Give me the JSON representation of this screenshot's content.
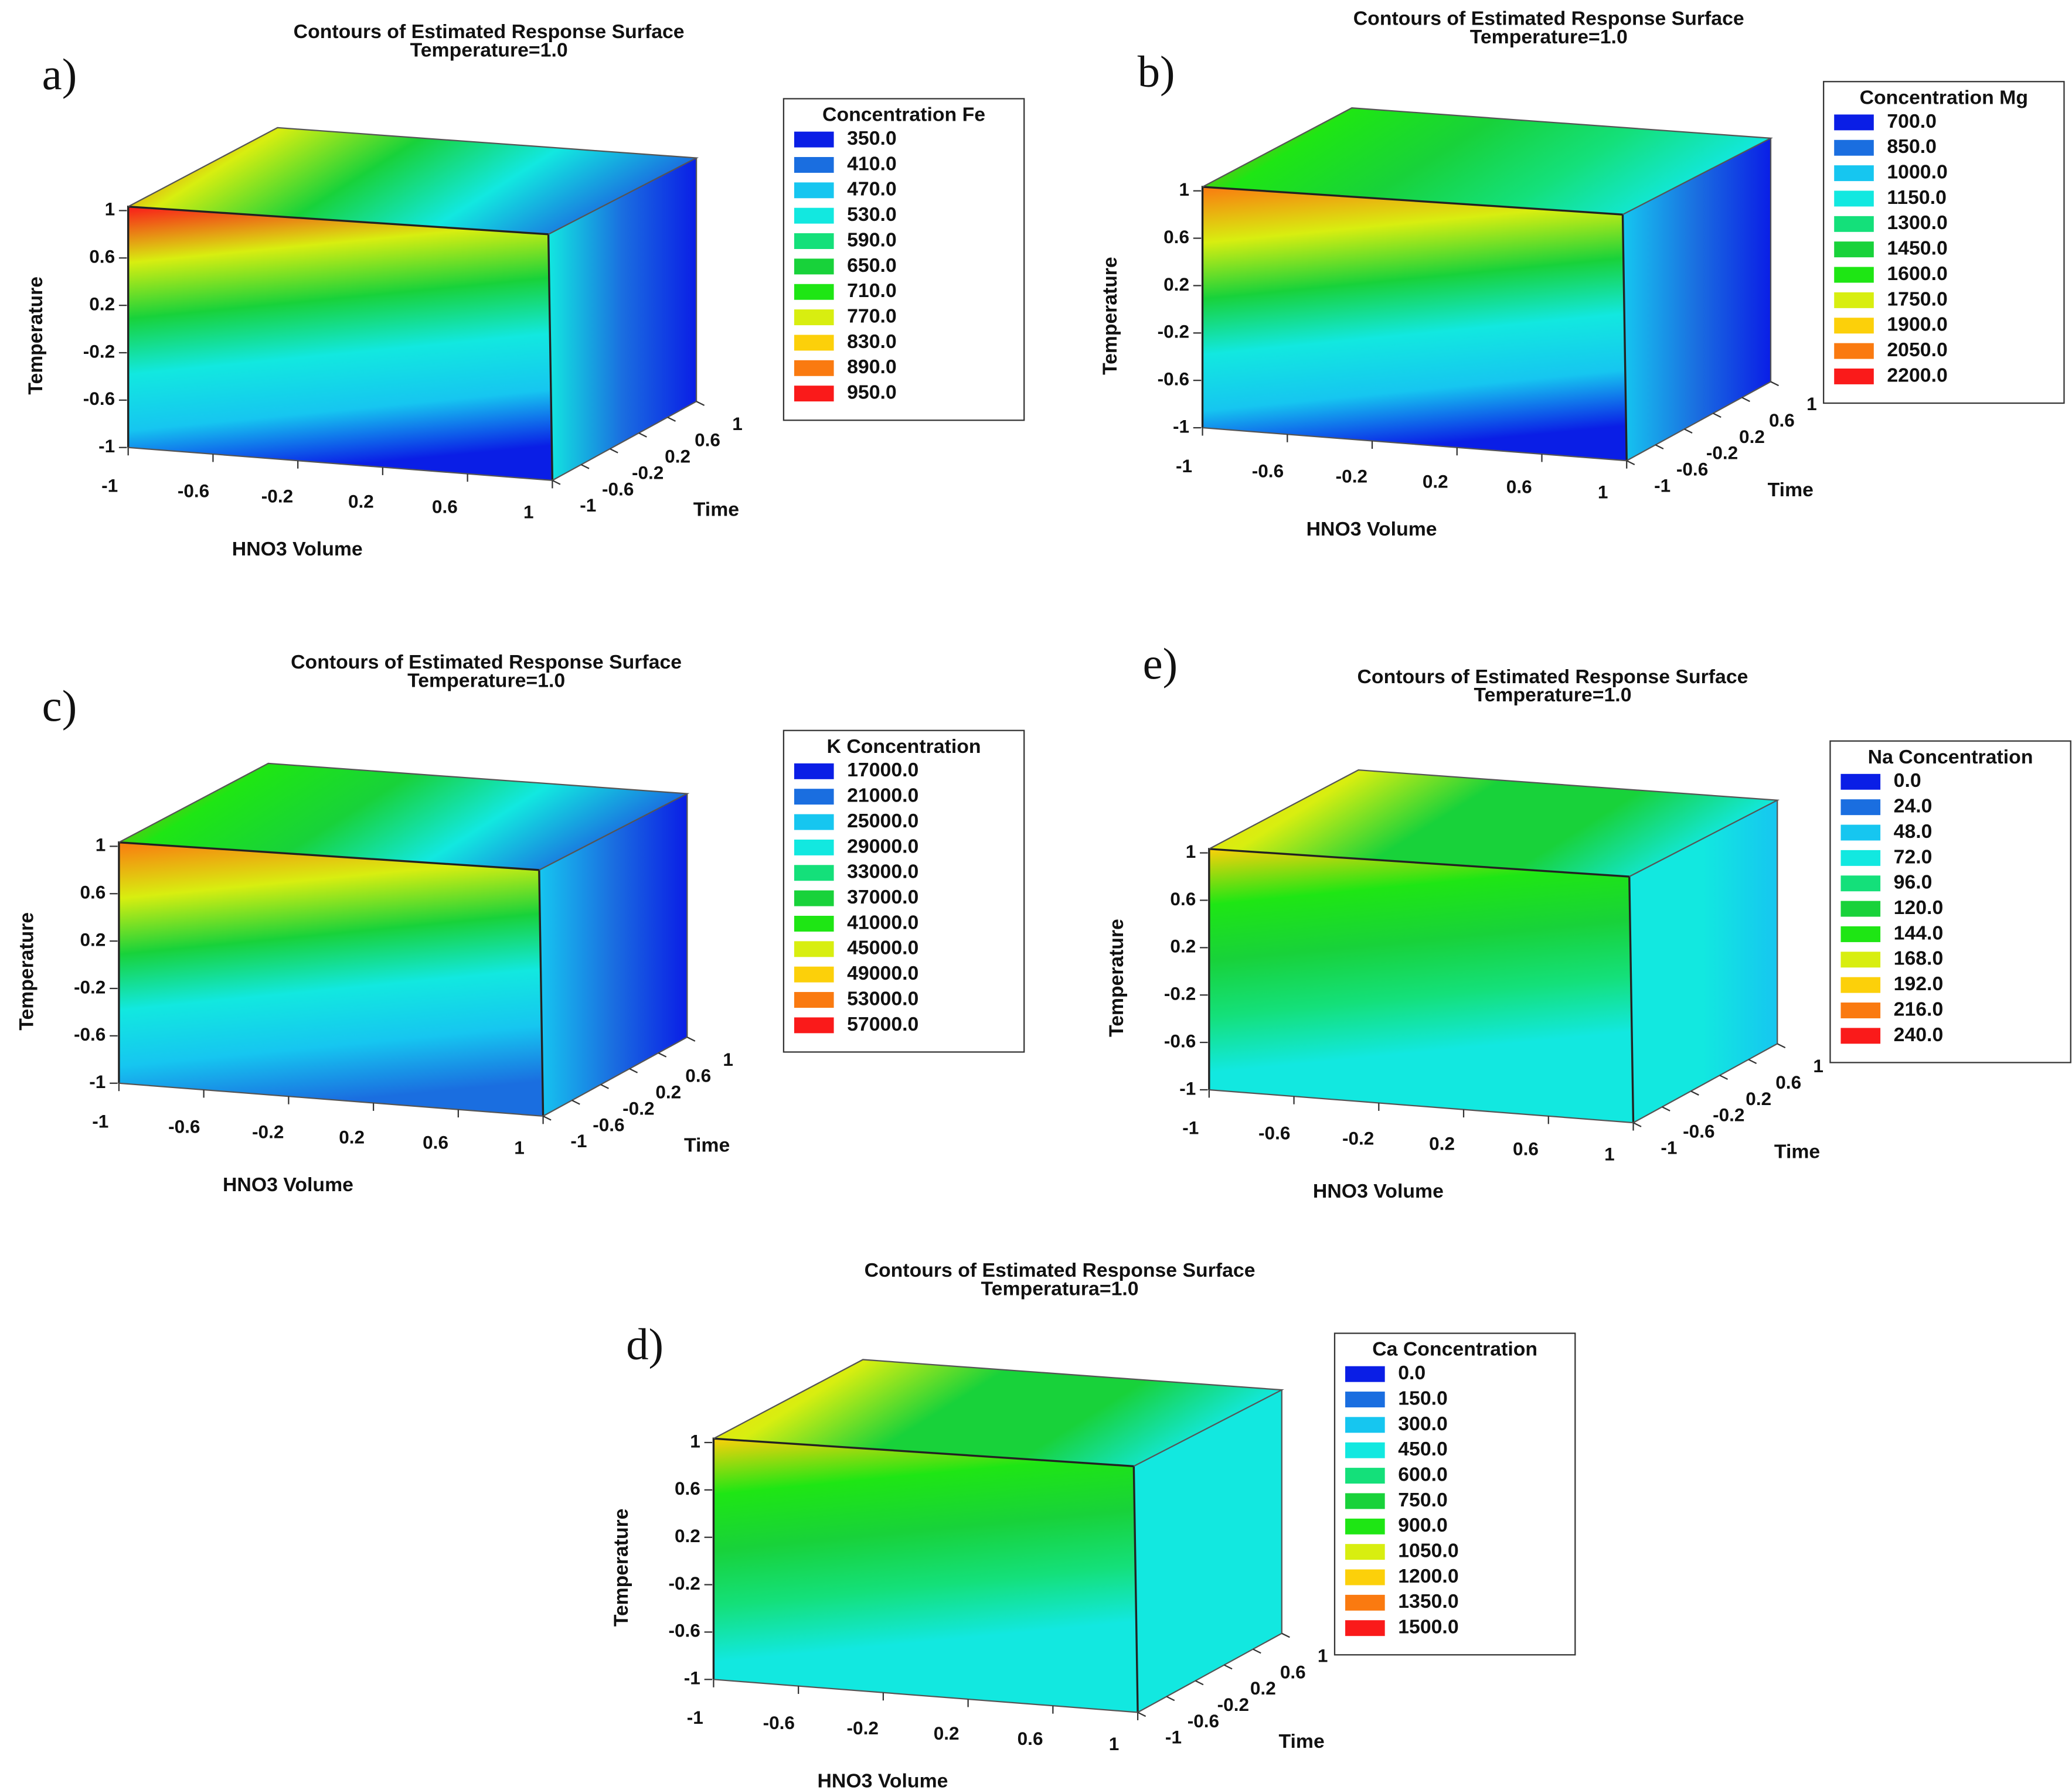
{
  "chart_data": [
    {
      "type": "contour",
      "panel": "a)",
      "title": "Contours of Estimated Response Surface",
      "subtitle": "Temperature=1.0",
      "xlabel": "HNO3 Volume",
      "ylabel": "Temperature",
      "zlabel": "Time",
      "xlim": [
        -1,
        1
      ],
      "xticks": [
        -1,
        -0.6,
        -0.2,
        0.2,
        0.6,
        1
      ],
      "ylim": [
        -1,
        1
      ],
      "yticks": [
        -1,
        -0.6,
        -0.2,
        0.2,
        0.6,
        1
      ],
      "zlim": [
        -1,
        1
      ],
      "zticks": [
        -1,
        -0.6,
        -0.2,
        0.2,
        0.6,
        1
      ],
      "legend_title": "Concentration Fe",
      "levels": [
        {
          "value": 350,
          "label": "350.0"
        },
        {
          "value": 410,
          "label": "410.0"
        },
        {
          "value": 470,
          "label": "470.0"
        },
        {
          "value": 530,
          "label": "530.0"
        },
        {
          "value": 590,
          "label": "590.0"
        },
        {
          "value": 650,
          "label": "650.0"
        },
        {
          "value": 710,
          "label": "710.0"
        },
        {
          "value": 770,
          "label": "770.0"
        },
        {
          "value": 830,
          "label": "830.0"
        },
        {
          "value": 890,
          "label": "890.0"
        },
        {
          "value": 950,
          "label": "950.0"
        }
      ],
      "colors": [
        "#0a1ee6",
        "#1a6ee0",
        "#16c6f0",
        "#12e8e0",
        "#14e07a",
        "#18d23a",
        "#1ee614",
        "#d8ee10",
        "#fcd00a",
        "#fa7a10",
        "#fa1a1a"
      ]
    },
    {
      "type": "contour",
      "panel": "b)",
      "title": "Contours of Estimated Response Surface",
      "subtitle": "Temperature=1.0",
      "xlabel": "HNO3 Volume",
      "ylabel": "Temperature",
      "zlabel": "Time",
      "xlim": [
        -1,
        1
      ],
      "xticks": [
        -1,
        -0.6,
        -0.2,
        0.2,
        0.6,
        1
      ],
      "ylim": [
        -1,
        1
      ],
      "yticks": [
        -1,
        -0.6,
        -0.2,
        0.2,
        0.6,
        1
      ],
      "zlim": [
        -1,
        1
      ],
      "zticks": [
        -1,
        -0.6,
        -0.2,
        0.2,
        0.6,
        1
      ],
      "legend_title": "Concentration Mg",
      "levels": [
        {
          "value": 700,
          "label": "700.0"
        },
        {
          "value": 850,
          "label": "850.0"
        },
        {
          "value": 1000,
          "label": "1000.0"
        },
        {
          "value": 1150,
          "label": "1150.0"
        },
        {
          "value": 1300,
          "label": "1300.0"
        },
        {
          "value": 1450,
          "label": "1450.0"
        },
        {
          "value": 1600,
          "label": "1600.0"
        },
        {
          "value": 1750,
          "label": "1750.0"
        },
        {
          "value": 1900,
          "label": "1900.0"
        },
        {
          "value": 2050,
          "label": "2050.0"
        },
        {
          "value": 2200,
          "label": "2200.0"
        }
      ],
      "colors": [
        "#0a1ee6",
        "#1a6ee0",
        "#16c6f0",
        "#12e8e0",
        "#14e07a",
        "#18d23a",
        "#1ee614",
        "#d8ee10",
        "#fcd00a",
        "#fa7a10",
        "#fa1a1a"
      ]
    },
    {
      "type": "contour",
      "panel": "c)",
      "title": "Contours of Estimated Response Surface",
      "subtitle": "Temperature=1.0",
      "xlabel": "HNO3 Volume",
      "ylabel": "Temperature",
      "zlabel": "Time",
      "xlim": [
        -1,
        1
      ],
      "xticks": [
        -1,
        -0.6,
        -0.2,
        0.2,
        0.6,
        1
      ],
      "ylim": [
        -1,
        1
      ],
      "yticks": [
        -1,
        -0.6,
        -0.2,
        0.2,
        0.6,
        1
      ],
      "zlim": [
        -1,
        1
      ],
      "zticks": [
        -1,
        -0.6,
        -0.2,
        0.2,
        0.6,
        1
      ],
      "legend_title": "K Concentration",
      "levels": [
        {
          "value": 17000,
          "label": "17000.0"
        },
        {
          "value": 21000,
          "label": "21000.0"
        },
        {
          "value": 25000,
          "label": "25000.0"
        },
        {
          "value": 29000,
          "label": "29000.0"
        },
        {
          "value": 33000,
          "label": "33000.0"
        },
        {
          "value": 37000,
          "label": "37000.0"
        },
        {
          "value": 41000,
          "label": "41000.0"
        },
        {
          "value": 45000,
          "label": "45000.0"
        },
        {
          "value": 49000,
          "label": "49000.0"
        },
        {
          "value": 53000,
          "label": "53000.0"
        },
        {
          "value": 57000,
          "label": "57000.0"
        }
      ],
      "colors": [
        "#0a1ee6",
        "#1a6ee0",
        "#16c6f0",
        "#12e8e0",
        "#14e07a",
        "#18d23a",
        "#1ee614",
        "#d8ee10",
        "#fcd00a",
        "#fa7a10",
        "#fa1a1a"
      ]
    },
    {
      "type": "contour",
      "panel": "e)",
      "title": "Contours of Estimated Response Surface",
      "subtitle": "Temperature=1.0",
      "xlabel": "HNO3 Volume",
      "ylabel": "Temperature",
      "zlabel": "Time",
      "xlim": [
        -1,
        1
      ],
      "xticks": [
        -1,
        -0.6,
        -0.2,
        0.2,
        0.6,
        1
      ],
      "ylim": [
        -1,
        1
      ],
      "yticks": [
        -1,
        -0.6,
        -0.2,
        0.2,
        0.6,
        1
      ],
      "zlim": [
        -1,
        1
      ],
      "zticks": [
        -1,
        -0.6,
        -0.2,
        0.2,
        0.6,
        1
      ],
      "legend_title": "Na Concentration",
      "levels": [
        {
          "value": 0,
          "label": "0.0"
        },
        {
          "value": 24,
          "label": "24.0"
        },
        {
          "value": 48,
          "label": "48.0"
        },
        {
          "value": 72,
          "label": "72.0"
        },
        {
          "value": 96,
          "label": "96.0"
        },
        {
          "value": 120,
          "label": "120.0"
        },
        {
          "value": 144,
          "label": "144.0"
        },
        {
          "value": 168,
          "label": "168.0"
        },
        {
          "value": 192,
          "label": "192.0"
        },
        {
          "value": 216,
          "label": "216.0"
        },
        {
          "value": 240,
          "label": "240.0"
        }
      ],
      "colors": [
        "#0a1ee6",
        "#1a6ee0",
        "#16c6f0",
        "#12e8e0",
        "#14e07a",
        "#18d23a",
        "#1ee614",
        "#d8ee10",
        "#fcd00a",
        "#fa7a10",
        "#fa1a1a"
      ]
    },
    {
      "type": "contour",
      "panel": "d)",
      "title": "Contours of Estimated Response Surface",
      "subtitle": "Temperatura=1.0",
      "xlabel": "HNO3 Volume",
      "ylabel": "Temperature",
      "zlabel": "Time",
      "xlim": [
        -1,
        1
      ],
      "xticks": [
        -1,
        -0.6,
        -0.2,
        0.2,
        0.6,
        1
      ],
      "ylim": [
        -1,
        1
      ],
      "yticks": [
        -1,
        -0.6,
        -0.2,
        0.2,
        0.6,
        1
      ],
      "zlim": [
        -1,
        1
      ],
      "zticks": [
        -1,
        -0.6,
        -0.2,
        0.2,
        0.6,
        1
      ],
      "legend_title": "Ca Concentration",
      "levels": [
        {
          "value": 0,
          "label": "0.0"
        },
        {
          "value": 150,
          "label": "150.0"
        },
        {
          "value": 300,
          "label": "300.0"
        },
        {
          "value": 450,
          "label": "450.0"
        },
        {
          "value": 600,
          "label": "600.0"
        },
        {
          "value": 750,
          "label": "750.0"
        },
        {
          "value": 900,
          "label": "900.0"
        },
        {
          "value": 1050,
          "label": "1050.0"
        },
        {
          "value": 1200,
          "label": "1200.0"
        },
        {
          "value": 1350,
          "label": "1350.0"
        },
        {
          "value": 1500,
          "label": "1500.0"
        }
      ],
      "colors": [
        "#0a1ee6",
        "#1a6ee0",
        "#16c6f0",
        "#12e8e0",
        "#14e07a",
        "#18d23a",
        "#1ee614",
        "#d8ee10",
        "#fcd00a",
        "#fa7a10",
        "#fa1a1a"
      ]
    }
  ]
}
